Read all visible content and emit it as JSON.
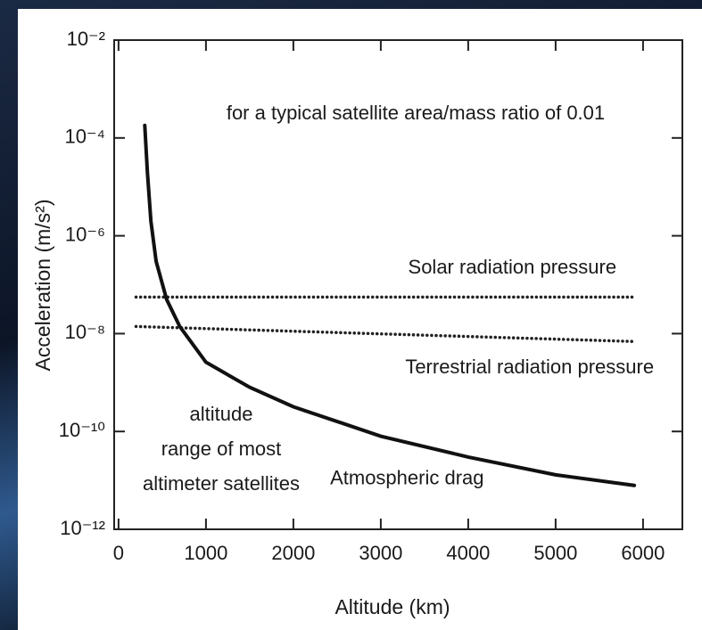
{
  "chart_data": {
    "type": "line",
    "log_y": true,
    "grid": false,
    "x_label": "Altitude (km)",
    "y_label": "Acceleration (m/s²)",
    "annotations": [
      "for a typical satellite area/mass ratio of 0.01"
    ],
    "region_label": [
      "altitude",
      "range of most",
      "altimeter satellites"
    ],
    "xlim": [
      -50,
      6450
    ],
    "xticks": [
      0,
      1000,
      2000,
      3000,
      4000,
      5000,
      6000
    ],
    "ylim": [
      1e-12,
      0.01
    ],
    "yticks": [
      {
        "value": 0.01,
        "label": "10⁻²"
      },
      {
        "value": 0.0001,
        "label": "10⁻⁴"
      },
      {
        "value": 1e-06,
        "label": "10⁻⁶"
      },
      {
        "value": 1e-08,
        "label": "10⁻⁸"
      },
      {
        "value": 1e-10,
        "label": "10⁻¹⁰"
      },
      {
        "value": 1e-12,
        "label": "10⁻¹²"
      }
    ],
    "series": [
      {
        "name": "Solar radiation pressure",
        "color": "#222222",
        "style": "dotted",
        "x": [
          200,
          5900
        ],
        "values": [
          5.6e-08,
          5.6e-08
        ]
      },
      {
        "name": "Terrestrial radiation pressure",
        "color": "#222222",
        "style": "dotted",
        "x": [
          200,
          5900
        ],
        "values": [
          1.4e-08,
          6.9e-09
        ]
      },
      {
        "name": "Atmospheric drag",
        "color": "#111111",
        "style": "solid",
        "x": [
          300,
          330,
          370,
          430,
          550,
          700,
          1000,
          1500,
          2000,
          3000,
          4000,
          5000,
          5900
        ],
        "values": [
          0.00018,
          2e-05,
          2e-06,
          3e-07,
          5e-08,
          1.4e-08,
          2.6e-09,
          8e-10,
          3.2e-10,
          8e-11,
          3e-11,
          1.3e-11,
          7.9e-12
        ]
      }
    ]
  }
}
